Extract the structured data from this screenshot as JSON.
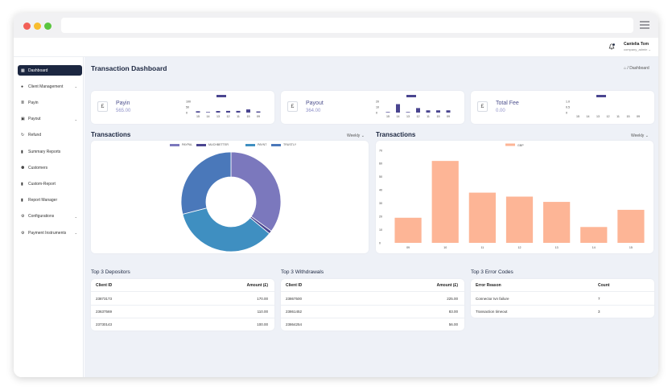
{
  "window": {
    "colors": {
      "close": "#f25f57",
      "minimize": "#f8bd2f",
      "maximize": "#5ac53f"
    }
  },
  "header": {
    "user_name": "Cantelia Tom",
    "user_role": "company_admin",
    "notifications": "0"
  },
  "sidebar": {
    "items": [
      {
        "label": "Dashboard",
        "icon": "grid-icon",
        "active": true,
        "chevron": false
      },
      {
        "label": "Client Management",
        "icon": "user-icon",
        "chevron": true
      },
      {
        "label": "Payin",
        "icon": "list-icon",
        "chevron": false
      },
      {
        "label": "Payout",
        "icon": "wallet-icon",
        "chevron": true
      },
      {
        "label": "Refund",
        "icon": "refund-icon",
        "chevron": false
      },
      {
        "label": "Summary Reports",
        "icon": "file-icon",
        "chevron": false
      },
      {
        "label": "Customers",
        "icon": "users-icon",
        "chevron": false
      },
      {
        "label": "Custom-Report",
        "icon": "file-icon",
        "chevron": false
      },
      {
        "label": "Report Manager",
        "icon": "file-icon",
        "chevron": false
      },
      {
        "label": "Configurations",
        "icon": "config-icon",
        "chevron": true
      },
      {
        "label": "Payment Instruments",
        "icon": "config-icon",
        "chevron": true
      }
    ]
  },
  "page": {
    "title": "Transaction Dashboard",
    "breadcrumb": "Dashboard",
    "breadcrumb_sep": "/"
  },
  "stats": [
    {
      "name": "Payin",
      "value": "565.00",
      "currency": "£",
      "mini_chart": {
        "y_ticks": [
          "100",
          "50",
          "0"
        ],
        "ymax": 100,
        "x": [
          "15",
          "14",
          "13",
          "12",
          "11",
          "15",
          "09"
        ],
        "values": [
          12,
          5,
          14,
          15,
          15,
          28,
          10
        ]
      }
    },
    {
      "name": "Payout",
      "value": "364.00",
      "currency": "£",
      "mini_chart": {
        "y_ticks": [
          "20",
          "10",
          "0"
        ],
        "ymax": 20,
        "x": [
          "15",
          "14",
          "13",
          "12",
          "11",
          "15",
          "09"
        ],
        "values": [
          1,
          15,
          1,
          8,
          4,
          4,
          4
        ]
      }
    },
    {
      "name": "Total Fee",
      "value": "0.00",
      "currency": "£",
      "mini_chart": {
        "y_ticks": [
          "1.0",
          "0.5",
          "0"
        ],
        "ymax": 1,
        "x": [
          "15",
          "14",
          "13",
          "12",
          "11",
          "15",
          "09"
        ],
        "values": [
          0,
          0,
          0,
          0,
          0,
          0,
          0
        ]
      }
    }
  ],
  "donut_section": {
    "title": "Transactions",
    "period": "Weekly"
  },
  "bar_section": {
    "title": "Transactions",
    "period": "Weekly"
  },
  "chart_data": [
    {
      "type": "pie",
      "categories": [
        "PAYPAL",
        "MUCHBETTER",
        "PAYNT",
        "TRUSTLY"
      ],
      "values": [
        35,
        1,
        35,
        29
      ],
      "colors": [
        "#7b78bd",
        "#4a4590",
        "#3f8fc1",
        "#4a78ba"
      ],
      "donut": true
    },
    {
      "type": "bar",
      "series": [
        {
          "name": "GBP",
          "values": [
            19,
            62,
            38,
            35,
            31,
            12,
            25
          ]
        }
      ],
      "categories": [
        "09",
        "10",
        "11",
        "12",
        "13",
        "14",
        "15"
      ],
      "ylim": [
        0,
        70
      ],
      "y_ticks": [
        "70",
        "60",
        "50",
        "40",
        "30",
        "20",
        "10",
        "0"
      ],
      "color": "#fdb596"
    }
  ],
  "tables": {
    "depositors": {
      "title": "Top 3 Depositors",
      "columns": [
        "Client ID",
        "Amount (£)"
      ],
      "rows": [
        [
          "23873173",
          "170.00"
        ],
        [
          "23637569",
          "110.00"
        ],
        [
          "23730143",
          "100.00"
        ]
      ]
    },
    "withdrawals": {
      "title": "Top 3 Withdrawals",
      "columns": [
        "Client ID",
        "Amount (£)"
      ],
      "rows": [
        [
          "23867500",
          "225.00"
        ],
        [
          "23861452",
          "83.00"
        ],
        [
          "23864254",
          "56.00"
        ]
      ]
    },
    "errors": {
      "title": "Top 3 Error Codes",
      "columns": [
        "Error Reason",
        "Count"
      ],
      "rows": [
        [
          "Connector tvn failure",
          "7"
        ],
        [
          "Transaction timeout",
          "3"
        ]
      ]
    }
  }
}
